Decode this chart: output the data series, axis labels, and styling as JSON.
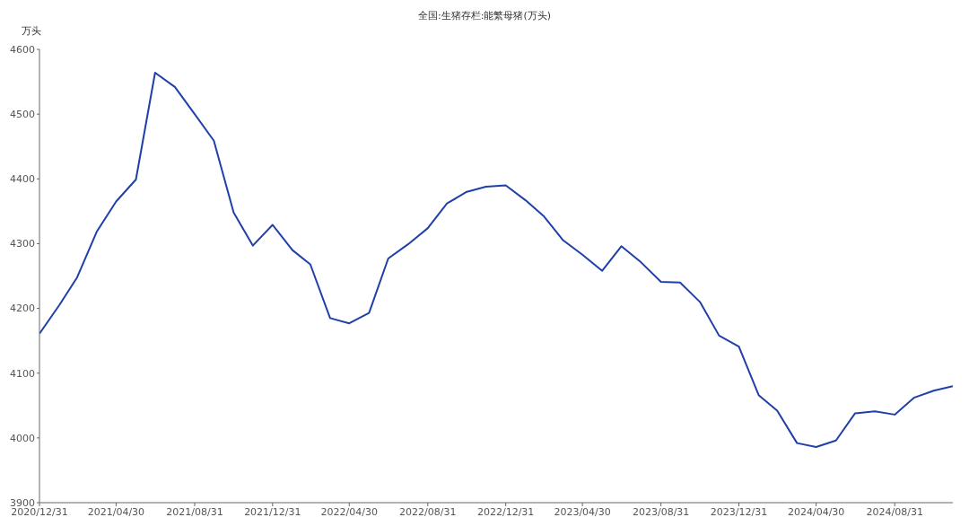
{
  "chart_data": {
    "type": "line",
    "title": "全国:生猪存栏:能繁母猪(万头)",
    "ylabel": "万头",
    "x": [
      "2020-12-31",
      "2021-01-31",
      "2021-02-28",
      "2021-03-31",
      "2021-04-30",
      "2021-05-31",
      "2021-06-30",
      "2021-07-31",
      "2021-08-31",
      "2021-09-30",
      "2021-10-31",
      "2021-11-30",
      "2021-12-31",
      "2022-01-31",
      "2022-02-28",
      "2022-03-31",
      "2022-04-30",
      "2022-05-31",
      "2022-06-30",
      "2022-07-31",
      "2022-08-31",
      "2022-09-30",
      "2022-10-31",
      "2022-11-30",
      "2022-12-31",
      "2023-01-31",
      "2023-02-28",
      "2023-03-31",
      "2023-04-30",
      "2023-05-31",
      "2023-06-30",
      "2023-07-31",
      "2023-08-31",
      "2023-09-30",
      "2023-10-31",
      "2023-11-30",
      "2023-12-31",
      "2024-01-31",
      "2024-02-29",
      "2024-03-31",
      "2024-04-30",
      "2024-05-31",
      "2024-06-30",
      "2024-07-31",
      "2024-08-31",
      "2024-09-30",
      "2024-10-31",
      "2024-11-30"
    ],
    "series": [
      {
        "color": "#1f40a8",
        "values": [
          4161,
          4205,
          4248,
          4319,
          4365,
          4399,
          4564,
          4542,
          4500,
          4459,
          4348,
          4297,
          4329,
          4290,
          4268,
          4185,
          4177,
          4193,
          4277,
          4299,
          4324,
          4362,
          4380,
          4388,
          4390,
          4367,
          4343,
          4305,
          4283,
          4258,
          4296,
          4271,
          4241,
          4240,
          4210,
          4158,
          4141,
          4066,
          4042,
          3992,
          3986,
          3996,
          4038,
          4041,
          4036,
          4062,
          4073,
          4080
        ]
      }
    ],
    "xlim": [
      "2020-12-31",
      "2024-11-30"
    ],
    "xticks": [
      {
        "value": "2020-12-31",
        "label": "2020/12/31"
      },
      {
        "value": "2021-04-30",
        "label": "2021/04/30"
      },
      {
        "value": "2021-08-31",
        "label": "2021/08/31"
      },
      {
        "value": "2021-12-31",
        "label": "2021/12/31"
      },
      {
        "value": "2022-04-30",
        "label": "2022/04/30"
      },
      {
        "value": "2022-08-31",
        "label": "2022/08/31"
      },
      {
        "value": "2022-12-31",
        "label": "2022/12/31"
      },
      {
        "value": "2023-04-30",
        "label": "2023/04/30"
      },
      {
        "value": "2023-08-31",
        "label": "2023/08/31"
      },
      {
        "value": "2023-12-31",
        "label": "2023/12/31"
      },
      {
        "value": "2024-04-30",
        "label": "2024/04/30"
      },
      {
        "value": "2024-08-31",
        "label": "2024/08/31"
      }
    ],
    "ylim": [
      3900,
      4600
    ],
    "yticks": [
      3900,
      4000,
      4100,
      4200,
      4300,
      4400,
      4500,
      4600
    ],
    "grid": false,
    "legend": false,
    "marker": "none",
    "line_style": "solid"
  }
}
